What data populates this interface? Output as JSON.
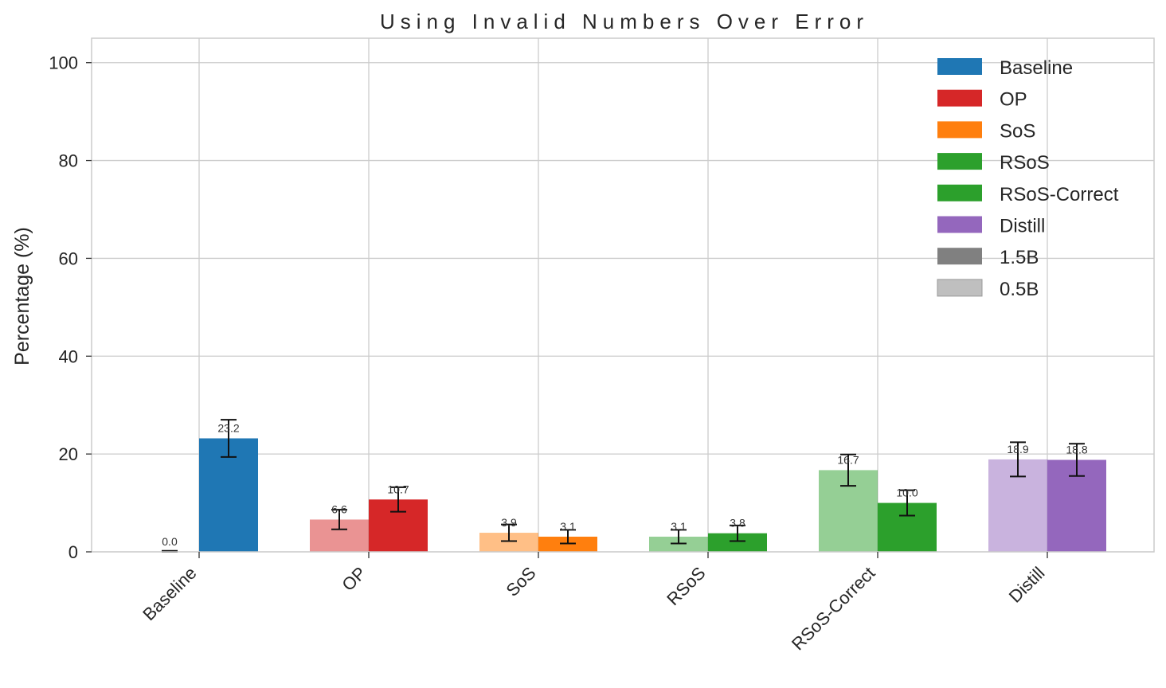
{
  "chart_data": {
    "type": "bar",
    "title": "Using Invalid Numbers Over Error",
    "xlabel": "",
    "ylabel": "Percentage (%)",
    "ylim": [
      0,
      105
    ],
    "yticks": [
      0,
      20,
      40,
      60,
      80,
      100
    ],
    "grid": true,
    "legend_position": "top-right",
    "categories": [
      "Baseline",
      "OP",
      "SoS",
      "RSoS",
      "RSoS-Correct",
      "Distill"
    ],
    "series": [
      {
        "name": "0.5B",
        "values": [
          0.0,
          6.6,
          3.9,
          3.1,
          16.7,
          18.9
        ],
        "errors": [
          0.2,
          2.0,
          1.7,
          1.4,
          3.2,
          3.5
        ]
      },
      {
        "name": "1.5B",
        "values": [
          23.2,
          10.7,
          3.1,
          3.8,
          10.0,
          18.8
        ],
        "errors": [
          3.8,
          2.5,
          1.4,
          1.6,
          2.6,
          3.3
        ]
      }
    ],
    "category_colors": {
      "Baseline": "#1f77b4",
      "OP": "#d62728",
      "SoS": "#ff7f0e",
      "RSoS": "#2ca02c",
      "RSoS-Correct": "#2ca02c",
      "Distill": "#9467bd"
    },
    "light_alpha": 0.5,
    "legend": [
      {
        "label": "Baseline",
        "color": "#1f77b4"
      },
      {
        "label": "OP",
        "color": "#d62728"
      },
      {
        "label": "SoS",
        "color": "#ff7f0e"
      },
      {
        "label": "RSoS",
        "color": "#2ca02c"
      },
      {
        "label": "RSoS-Correct",
        "color": "#2ca02c"
      },
      {
        "label": "Distill",
        "color": "#9467bd"
      },
      {
        "label": "1.5B",
        "color": "#808080"
      },
      {
        "label": "0.5B",
        "color": "#bfbfbf"
      }
    ]
  }
}
